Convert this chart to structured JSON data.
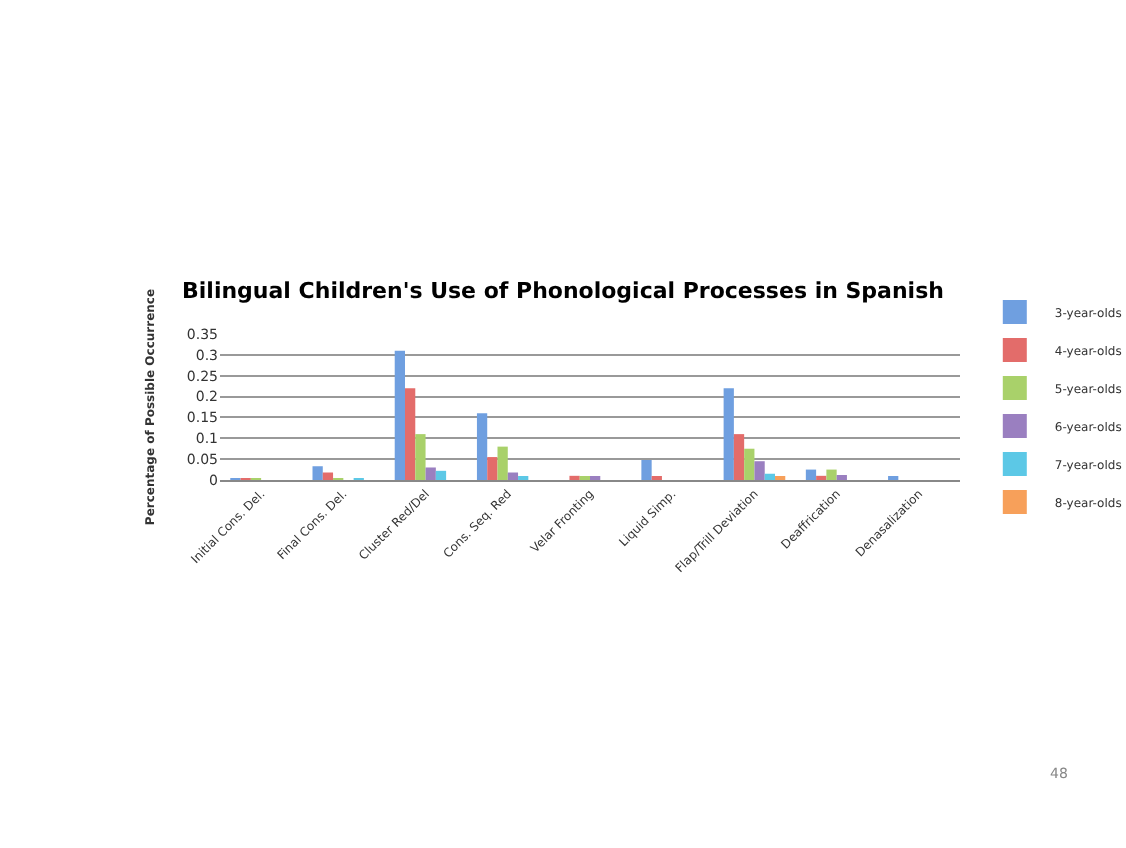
{
  "chart_data": {
    "type": "bar",
    "title": "Bilingual Children's Use of Phonological Processes in Spanish",
    "ylabel": "Percentage of Possible Occurrence",
    "categories": [
      "Initial Cons. Del.",
      "Final Cons. Del.",
      "Cluster Red/Del",
      "Cons. Seq. Red",
      "Velar Fronting",
      "Liquid Simp.",
      "Flap/Trill Deviation",
      "Deaffrication",
      "Denasalization"
    ],
    "series": [
      {
        "name": "3-year-olds",
        "color": "#6f9fe0",
        "values": [
          0.003,
          0.033,
          0.31,
          0.16,
          0,
          0.048,
          0.22,
          0.025,
          0.005
        ]
      },
      {
        "name": "4-year-olds",
        "color": "#e36c6a",
        "values": [
          0.002,
          0.018,
          0.22,
          0.055,
          0.01,
          0.005,
          0.11,
          0.01,
          0
        ]
      },
      {
        "name": "5-year-olds",
        "color": "#a9d16a",
        "values": [
          0.003,
          0.002,
          0.11,
          0.08,
          0.006,
          0,
          0.075,
          0.025,
          0
        ]
      },
      {
        "name": "6-year-olds",
        "color": "#9a7fc0",
        "values": [
          null,
          0,
          0.03,
          0.018,
          0.005,
          0,
          0.045,
          0.012,
          0
        ]
      },
      {
        "name": "7-year-olds",
        "color": "#5cc8e6",
        "values": [
          0,
          0.002,
          0.022,
          0.008,
          0,
          0,
          0.015,
          0,
          0
        ]
      },
      {
        "name": "8-year-olds",
        "color": "#f7a05a",
        "values": [
          0,
          0,
          0,
          0,
          0,
          0,
          0.008,
          0,
          0
        ]
      }
    ],
    "ylim": [
      0,
      0.35
    ],
    "yticks": [
      {
        "value": 0,
        "label": "0"
      },
      0.05,
      0.1,
      0.15,
      0.2,
      0.25,
      0.3,
      0.35
    ],
    "grid": "y",
    "legend": "right",
    "annotations": [
      "48"
    ]
  }
}
